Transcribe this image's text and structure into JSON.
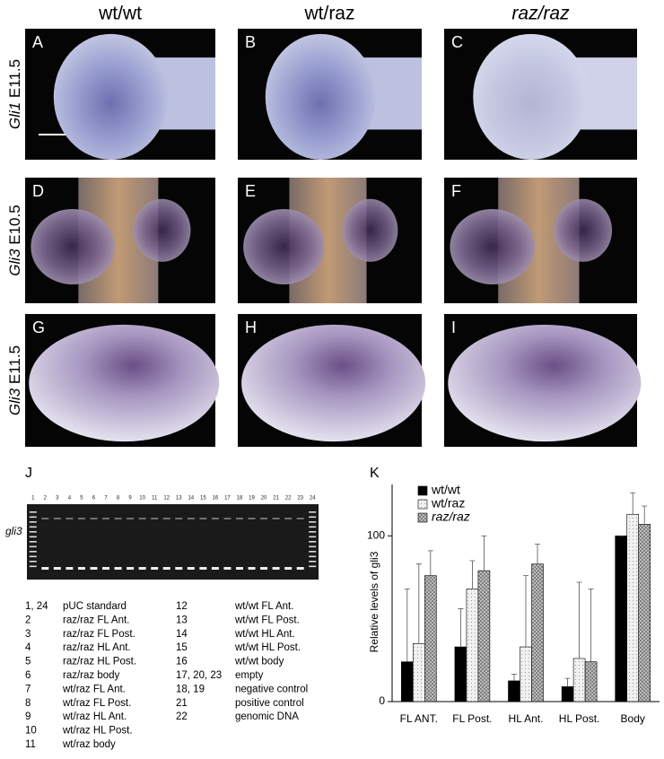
{
  "column_headers": [
    "wt/wt",
    "wt/raz",
    "raz/raz"
  ],
  "row_labels": [
    {
      "gene": "Gli1",
      "stage": "E11.5"
    },
    {
      "gene": "Gli3",
      "stage": "E10.5"
    },
    {
      "gene": "Gli3",
      "stage": "E11.5"
    }
  ],
  "panels": [
    "A",
    "B",
    "C",
    "D",
    "E",
    "F",
    "G",
    "H",
    "I"
  ],
  "gel": {
    "letter": "J",
    "gene_label": "gli3",
    "lanes": [
      1,
      2,
      3,
      4,
      5,
      6,
      7,
      8,
      9,
      10,
      11,
      12,
      13,
      14,
      15,
      16,
      17,
      18,
      19,
      20,
      21,
      22,
      23,
      24
    ],
    "legend_left": [
      {
        "lanes": "1, 24",
        "label": "pUC standard"
      },
      {
        "lanes": "2",
        "label": "raz/raz FL Ant."
      },
      {
        "lanes": "3",
        "label": "raz/raz FL Post."
      },
      {
        "lanes": "4",
        "label": "raz/raz HL Ant."
      },
      {
        "lanes": "5",
        "label": "raz/raz HL Post."
      },
      {
        "lanes": "6",
        "label": "raz/raz body"
      },
      {
        "lanes": "7",
        "label": "wt/raz FL Ant."
      },
      {
        "lanes": "8",
        "label": "wt/raz FL Post."
      },
      {
        "lanes": "9",
        "label": "wt/raz HL Ant."
      },
      {
        "lanes": "10",
        "label": "wt/raz HL Post."
      },
      {
        "lanes": "11",
        "label": "wt/raz body"
      }
    ],
    "legend_right": [
      {
        "lanes": "12",
        "label": "wt/wt FL Ant."
      },
      {
        "lanes": "13",
        "label": "wt/wt FL Post."
      },
      {
        "lanes": "14",
        "label": "wt/wt HL Ant."
      },
      {
        "lanes": "15",
        "label": "wt/wt HL Post."
      },
      {
        "lanes": "16",
        "label": "wt/wt body"
      },
      {
        "lanes": "17, 20, 23",
        "label": "empty"
      },
      {
        "lanes": "18, 19",
        "label": "negative control"
      },
      {
        "lanes": "21",
        "label": "positive control"
      },
      {
        "lanes": "22",
        "label": "genomic DNA"
      }
    ]
  },
  "chart_data": {
    "type": "bar",
    "letter": "K",
    "ylabel": "Relative levels of gli3",
    "categories": [
      "FL ANT.",
      "FL Post.",
      "HL Ant.",
      "HL Post.",
      "Body"
    ],
    "series": [
      {
        "name": "wt/wt",
        "color": "#000000",
        "values": [
          24,
          33,
          12.5,
          9,
          100
        ],
        "errors": [
          44,
          23,
          4,
          5,
          0
        ]
      },
      {
        "name": "wt/raz",
        "color": "#f0f0f0",
        "values": [
          35,
          68,
          33,
          26,
          113
        ],
        "errors": [
          48,
          17,
          43,
          46,
          13
        ]
      },
      {
        "name": "raz/raz",
        "color": "#c8c8c8",
        "values": [
          76,
          79,
          83,
          24,
          107
        ],
        "errors": [
          15,
          21,
          12,
          44,
          11
        ]
      }
    ],
    "ylim": [
      0,
      131
    ],
    "yticks": [
      0,
      100
    ]
  }
}
